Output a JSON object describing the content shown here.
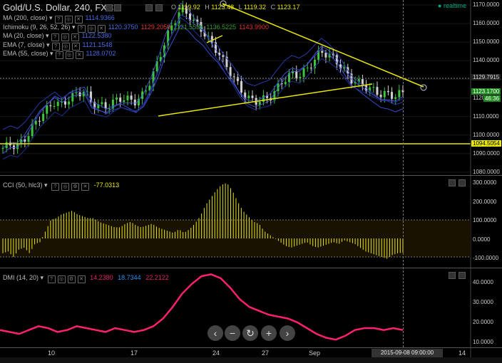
{
  "header": {
    "title": "Gold/U.S. Dollar, 240, FXCM",
    "realtime": "realtime"
  },
  "ohlc": {
    "o_label": "O",
    "o": "1119.92",
    "h_label": "H",
    "h": "1123.48",
    "l_label": "L",
    "l": "1119.32",
    "c_label": "C",
    "c": "1123.17"
  },
  "indicators": [
    {
      "name": "MA (200, close)",
      "values": [
        "1114.9366"
      ],
      "colors": [
        "#4a6de5"
      ]
    },
    {
      "name": "Ichimoku (9, 26, 52, 26)",
      "values": [
        "1120.3750",
        "1129.2059",
        "1121.5536",
        "1136.5225",
        "1143.9900"
      ],
      "colors": [
        "#4a6de5",
        "#e03030",
        "#30a030",
        "#30a030",
        "#e03030"
      ]
    },
    {
      "name": "MA (20, close)",
      "values": [
        "1122.5380"
      ],
      "colors": [
        "#4a6de5"
      ]
    },
    {
      "name": "EMA (7, close)",
      "values": [
        "1121.1548"
      ],
      "colors": [
        "#4a6de5"
      ]
    },
    {
      "name": "EMA (55, close)",
      "values": [
        "1128.0702"
      ],
      "colors": [
        "#4a6de5"
      ]
    }
  ],
  "price_axis": [
    "1170.0000",
    "1160.0000",
    "1150.0000",
    "1140.0000",
    "1130.0000",
    "1120.0000",
    "1110.0000",
    "1100.0000",
    "1090.0000",
    "1080.0000"
  ],
  "price_tags": {
    "crosshair": "1129.7915",
    "last": "1123.1700",
    "countdown": "46:36",
    "support": "1094.5054"
  },
  "cci": {
    "label": "CCI (50, hlc3)",
    "value": "-77.0313",
    "axis": [
      "300.0000",
      "200.0000",
      "100.0000",
      "0.0000",
      "-100.0000"
    ]
  },
  "dmi": {
    "label": "DMI (14, 20)",
    "values": [
      "14.2380",
      "18.7344",
      "22.2122"
    ],
    "colors": [
      "#e02070",
      "#2a8ef0",
      "#e02070"
    ],
    "axis": [
      "40.0000",
      "30.0000",
      "20.0000",
      "10.0000"
    ]
  },
  "time_axis": [
    "10",
    "17",
    "24",
    "27",
    "Sep",
    "14"
  ],
  "cursor_date": "2015-09-08 09:00:00",
  "zoom": {
    "zoom_out": "−",
    "zoom_minus": "−",
    "reset": "↻",
    "zoom_in": "+",
    "zoom_plus": "+"
  },
  "colors": {
    "up": "#3cc43c",
    "down": "#d0d0d0",
    "trend": "#e8e800",
    "support": "#e8e800",
    "cci_bar": "#e8e800",
    "adx": "#ff2070"
  }
}
